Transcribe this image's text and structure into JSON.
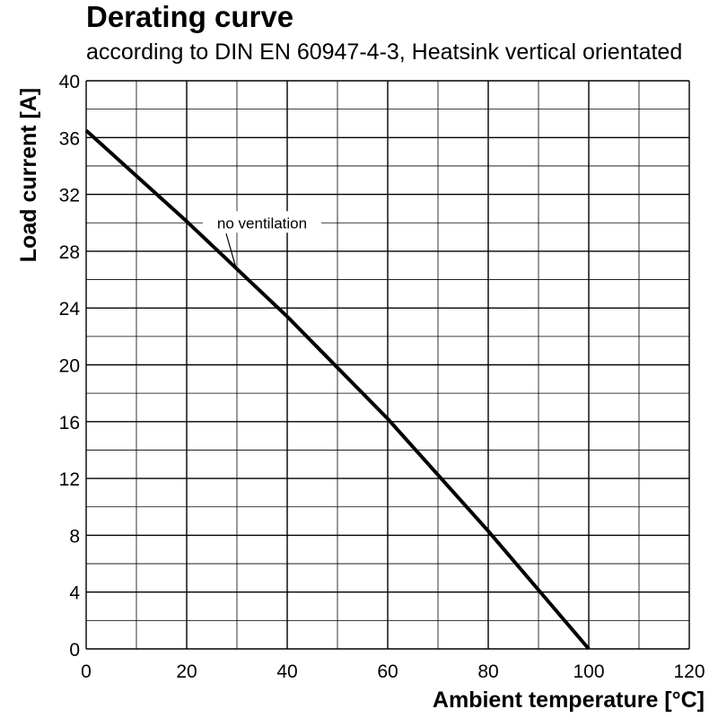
{
  "chart_data": {
    "type": "line",
    "title": "Derating curve",
    "subtitle": "according to DIN EN 60947-4-3, Heatsink vertical orientated",
    "xlabel": "Ambient temperature [°C]",
    "ylabel": "Load current [A]",
    "xlim": [
      0,
      120
    ],
    "ylim": [
      0,
      40
    ],
    "xticks": [
      0,
      20,
      40,
      60,
      80,
      100,
      120
    ],
    "yticks": [
      0,
      4,
      8,
      12,
      16,
      20,
      24,
      28,
      32,
      36,
      40
    ],
    "x_minor_step": 10,
    "y_minor_step": 2,
    "grid": true,
    "series": [
      {
        "name": "no ventilation",
        "x": [
          0,
          20,
          40,
          60,
          80,
          100
        ],
        "y": [
          36.5,
          30.1,
          23.4,
          16.2,
          8.3,
          0
        ]
      }
    ],
    "annotations": [
      {
        "text": "no ventilation",
        "x": 35,
        "y": 30.0,
        "points_to": [
          30,
          26.6
        ]
      }
    ]
  }
}
